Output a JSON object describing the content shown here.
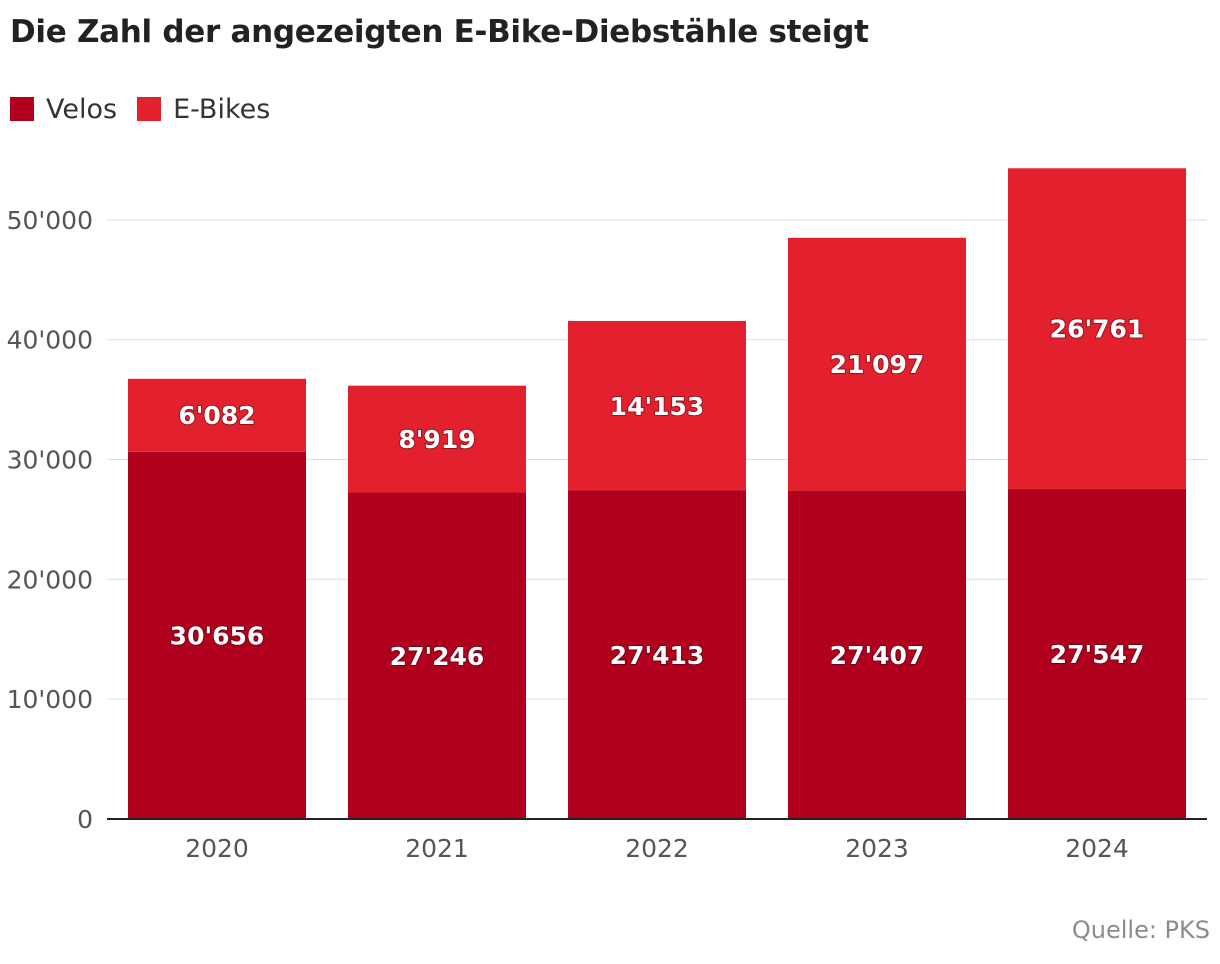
{
  "title": "Die Zahl der angezeigten E-Bike-Diebstähle steigt",
  "legend": [
    {
      "label": "Velos",
      "color": "#b1001e"
    },
    {
      "label": "E-Bikes",
      "color": "#e3202e"
    }
  ],
  "source": "Quelle: PKS",
  "chart_data": {
    "type": "bar",
    "stacked": true,
    "categories": [
      "2020",
      "2021",
      "2022",
      "2023",
      "2024"
    ],
    "series": [
      {
        "name": "Velos",
        "values": [
          30656,
          27246,
          27413,
          27407,
          27547
        ],
        "labels": [
          "30'656",
          "27'246",
          "27'413",
          "27'407",
          "27'547"
        ],
        "color": "#b1001e"
      },
      {
        "name": "E-Bikes",
        "values": [
          6082,
          8919,
          14153,
          21097,
          26761
        ],
        "labels": [
          "6'082",
          "8'919",
          "14'153",
          "21'097",
          "26'761"
        ],
        "color": "#e3202e"
      }
    ],
    "ylim": [
      0,
      55000
    ],
    "yticks": [
      0,
      10000,
      20000,
      30000,
      40000,
      50000
    ],
    "ytick_labels": [
      "0",
      "10'000",
      "20'000",
      "30'000",
      "40'000",
      "50'000"
    ],
    "grid": true,
    "legend_position": "top-left"
  }
}
